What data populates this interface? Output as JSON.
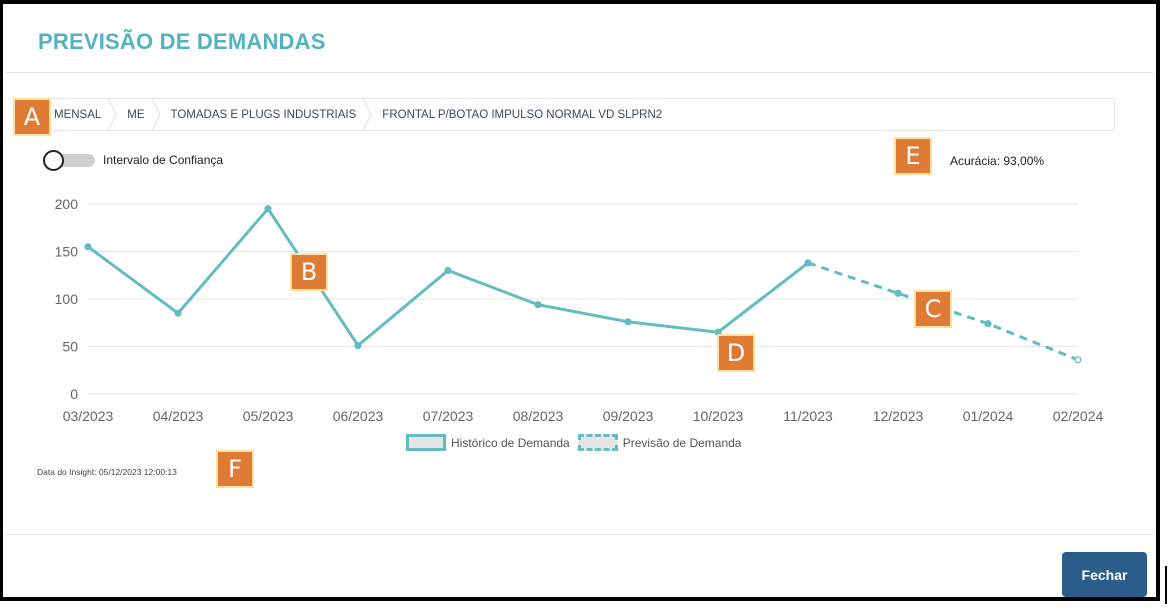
{
  "header": {
    "title": "PREVISÃO DE DEMANDAS"
  },
  "breadcrumb": {
    "items": [
      "MENSAL",
      "ME",
      "TOMADAS E PLUGS INDUSTRIAIS",
      "FRONTAL P/BOTAO IMPULSO NORMAL VD SLPRN2"
    ]
  },
  "toggle": {
    "label": "Intervalo de Confiança",
    "on": false
  },
  "accuracy": {
    "label": "Acurácia: 93,00%"
  },
  "callouts": [
    "A",
    "B",
    "C",
    "D",
    "E",
    "F"
  ],
  "chart_data": {
    "type": "line",
    "categories": [
      "03/2023",
      "04/2023",
      "05/2023",
      "06/2023",
      "07/2023",
      "08/2023",
      "09/2023",
      "10/2023",
      "11/2023",
      "12/2023",
      "01/2024",
      "02/2024"
    ],
    "series": [
      {
        "name": "Histórico de Demanda",
        "style": "solid",
        "values": [
          155,
          85,
          195,
          51,
          130,
          94,
          76,
          65,
          138,
          null,
          null,
          null
        ]
      },
      {
        "name": "Previsão de Demanda",
        "style": "dashed",
        "values": [
          null,
          null,
          null,
          null,
          null,
          null,
          null,
          null,
          138,
          106,
          74,
          36
        ]
      }
    ],
    "ylim": [
      0,
      200
    ],
    "yticks": [
      0,
      50,
      100,
      150,
      200
    ],
    "grid": true,
    "legend": "bottom-center",
    "color": "#62bcc1"
  },
  "insight": {
    "text": "Data do Insight: 05/12/2023 12:00:13"
  },
  "footer": {
    "close_label": "Fechar"
  }
}
